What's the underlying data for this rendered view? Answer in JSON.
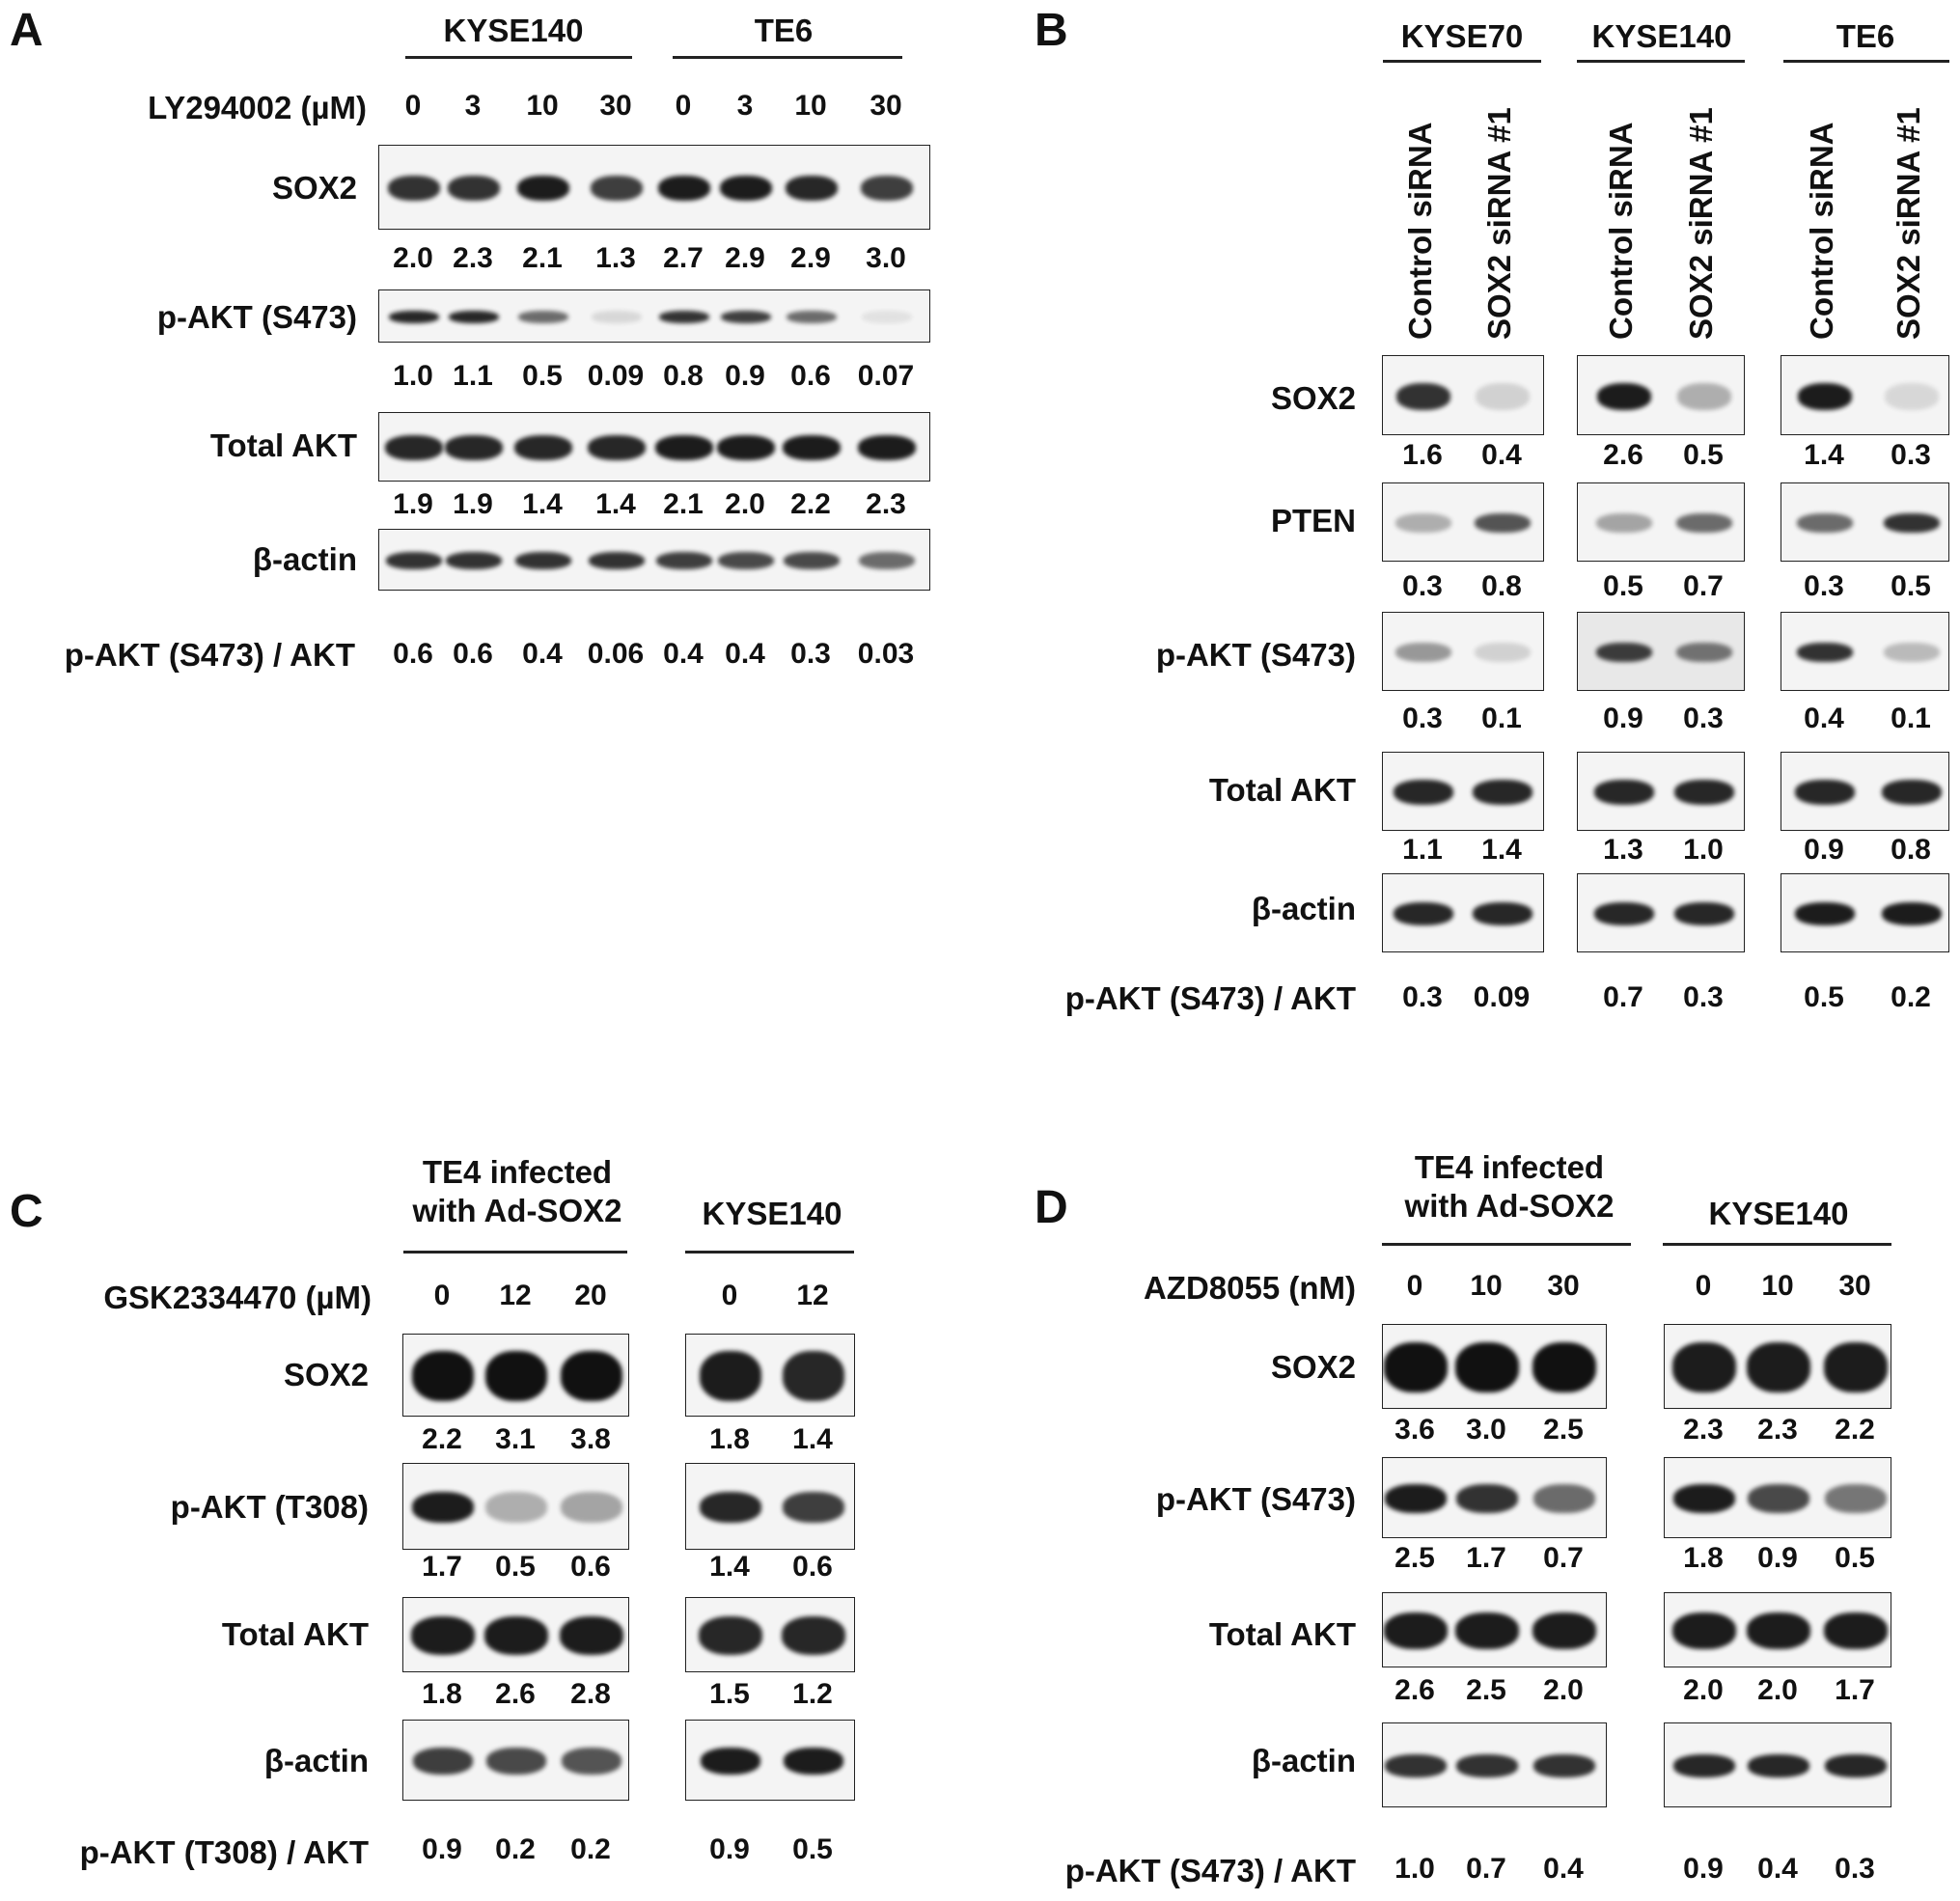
{
  "panels": {
    "A": {
      "letter": "A",
      "groups": [
        "KYSE140",
        "TE6"
      ],
      "treatment_label": "LY294002 (µM)",
      "doses": [
        "0",
        "3",
        "10",
        "30",
        "0",
        "3",
        "10",
        "30"
      ],
      "rows": [
        {
          "label": "SOX2",
          "values": [
            "2.0",
            "2.3",
            "2.1",
            "1.3",
            "2.7",
            "2.9",
            "2.9",
            "3.0"
          ],
          "band_intensity": [
            0.85,
            0.85,
            0.95,
            0.8,
            0.95,
            0.95,
            0.9,
            0.8
          ]
        },
        {
          "label": "p-AKT (S473)",
          "values": [
            "1.0",
            "1.1",
            "0.5",
            "0.09",
            "0.8",
            "0.9",
            "0.6",
            "0.07"
          ],
          "band_intensity": [
            0.9,
            0.9,
            0.6,
            0.12,
            0.85,
            0.8,
            0.6,
            0.08
          ]
        },
        {
          "label": "Total AKT",
          "values": [
            "1.9",
            "1.9",
            "1.4",
            "1.4",
            "2.1",
            "2.0",
            "2.2",
            "2.3"
          ],
          "band_intensity": [
            0.9,
            0.9,
            0.9,
            0.9,
            0.95,
            0.95,
            0.95,
            0.95
          ]
        },
        {
          "label": "β-actin",
          "values": [],
          "band_intensity": [
            0.85,
            0.85,
            0.85,
            0.85,
            0.8,
            0.75,
            0.75,
            0.6
          ]
        }
      ],
      "ratio_label": "p-AKT (S473) / AKT",
      "ratio_values": [
        "0.6",
        "0.6",
        "0.4",
        "0.06",
        "0.4",
        "0.4",
        "0.3",
        "0.03"
      ]
    },
    "B": {
      "letter": "B",
      "groups": [
        "KYSE70",
        "KYSE140",
        "TE6"
      ],
      "lane_labels": [
        "Control siRNA",
        "SOX2 siRNA #1",
        "Control siRNA",
        "SOX2 siRNA #1",
        "Control siRNA",
        "SOX2 siRNA #1"
      ],
      "rows": [
        {
          "label": "SOX2",
          "values": [
            "1.6",
            "0.4",
            "2.6",
            "0.5",
            "1.4",
            "0.3"
          ],
          "band_intensity": [
            0.85,
            0.15,
            0.95,
            0.3,
            0.95,
            0.12
          ]
        },
        {
          "label": "PTEN",
          "values": [
            "0.3",
            "0.8",
            "0.5",
            "0.7",
            "0.3",
            "0.5"
          ],
          "band_intensity": [
            0.3,
            0.7,
            0.35,
            0.6,
            0.6,
            0.85
          ]
        },
        {
          "label": "p-AKT (S473)",
          "values": [
            "0.3",
            "0.1",
            "0.9",
            "0.3",
            "0.4",
            "0.1"
          ],
          "band_intensity": [
            0.4,
            0.15,
            0.8,
            0.55,
            0.85,
            0.25
          ]
        },
        {
          "label": "Total AKT",
          "values": [
            "1.1",
            "1.4",
            "1.3",
            "1.0",
            "0.9",
            "0.8"
          ],
          "band_intensity": [
            0.9,
            0.9,
            0.9,
            0.9,
            0.9,
            0.9
          ]
        },
        {
          "label": "β-actin",
          "values": [],
          "band_intensity": [
            0.9,
            0.9,
            0.9,
            0.9,
            0.95,
            0.95
          ]
        }
      ],
      "ratio_label": "p-AKT (S473) / AKT",
      "ratio_values": [
        "0.3",
        "0.09",
        "0.7",
        "0.3",
        "0.5",
        "0.2"
      ]
    },
    "C": {
      "letter": "C",
      "groups": [
        "TE4 infected\nwith Ad-SOX2",
        "KYSE140"
      ],
      "treatment_label": "GSK2334470 (µM)",
      "doses": [
        "0",
        "12",
        "20",
        "0",
        "12"
      ],
      "rows": [
        {
          "label": "SOX2",
          "values": [
            "2.2",
            "3.1",
            "3.8",
            "1.8",
            "1.4"
          ],
          "band_intensity": [
            1,
            1,
            1,
            0.95,
            0.9
          ]
        },
        {
          "label": "p-AKT (T308)",
          "values": [
            "1.7",
            "0.5",
            "0.6",
            "1.4",
            "0.6"
          ],
          "band_intensity": [
            0.95,
            0.3,
            0.35,
            0.9,
            0.8
          ]
        },
        {
          "label": "Total AKT",
          "values": [
            "1.8",
            "2.6",
            "2.8",
            "1.5",
            "1.2"
          ],
          "band_intensity": [
            0.95,
            0.95,
            0.95,
            0.9,
            0.9
          ]
        },
        {
          "label": "β-actin",
          "values": [],
          "band_intensity": [
            0.8,
            0.75,
            0.7,
            0.95,
            0.95
          ]
        }
      ],
      "ratio_label": "p-AKT (T308) / AKT",
      "ratio_values": [
        "0.9",
        "0.2",
        "0.2",
        "0.9",
        "0.5"
      ]
    },
    "D": {
      "letter": "D",
      "groups": [
        "TE4 infected\nwith Ad-SOX2",
        "KYSE140"
      ],
      "treatment_label": "AZD8055 (nM)",
      "doses": [
        "0",
        "10",
        "30",
        "0",
        "10",
        "30"
      ],
      "rows": [
        {
          "label": "SOX2",
          "values": [
            "3.6",
            "3.0",
            "2.5",
            "2.3",
            "2.3",
            "2.2"
          ],
          "band_intensity": [
            1,
            1,
            1,
            0.95,
            0.95,
            0.95
          ]
        },
        {
          "label": "p-AKT (S473)",
          "values": [
            "2.5",
            "1.7",
            "0.7",
            "1.8",
            "0.9",
            "0.5"
          ],
          "band_intensity": [
            0.95,
            0.85,
            0.6,
            0.95,
            0.75,
            0.55
          ]
        },
        {
          "label": "Total AKT",
          "values": [
            "2.6",
            "2.5",
            "2.0",
            "2.0",
            "2.0",
            "1.7"
          ],
          "band_intensity": [
            0.95,
            0.95,
            0.95,
            0.95,
            0.95,
            0.95
          ]
        },
        {
          "label": "β-actin",
          "values": [],
          "band_intensity": [
            0.85,
            0.85,
            0.85,
            0.9,
            0.9,
            0.9
          ]
        }
      ],
      "ratio_label": "p-AKT (S473) / AKT",
      "ratio_values": [
        "1.0",
        "0.7",
        "0.4",
        "0.9",
        "0.4",
        "0.3"
      ]
    }
  }
}
